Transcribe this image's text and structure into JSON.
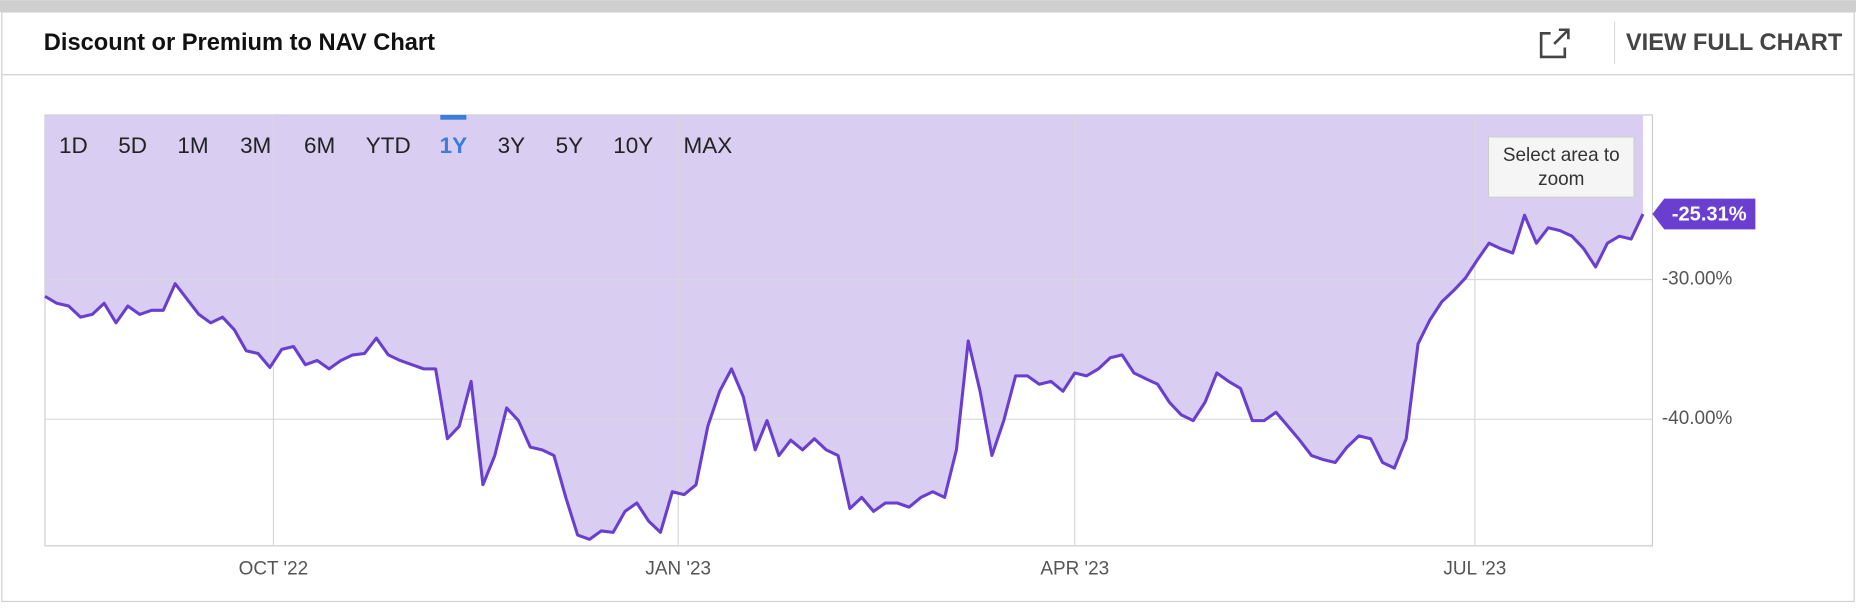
{
  "header": {
    "title": "Discount or Premium to NAV Chart",
    "action": "VIEW FULL CHART"
  },
  "chart_data": {
    "type": "line",
    "ranges": [
      "1D",
      "5D",
      "1M",
      "3M",
      "6M",
      "YTD",
      "1Y",
      "3Y",
      "5Y",
      "10Y",
      "MAX"
    ],
    "selected_range": "1Y",
    "zoom_hint": "Select area to zoom",
    "color": "#6a3fcf",
    "fill": "#d7cbf0",
    "values": [
      -31.2,
      -31.7,
      -31.9,
      -32.7,
      -32.5,
      -31.7,
      -33.1,
      -31.9,
      -32.5,
      -32.2,
      -32.2,
      -30.3,
      -31.4,
      -32.5,
      -33.1,
      -32.7,
      -33.6,
      -35.1,
      -35.3,
      -36.3,
      -35.0,
      -34.8,
      -36.1,
      -35.8,
      -36.4,
      -35.8,
      -35.4,
      -35.3,
      -34.2,
      -35.4,
      -35.8,
      -36.1,
      -36.4,
      -36.4,
      -41.4,
      -40.5,
      -37.3,
      -44.7,
      -42.6,
      -39.2,
      -40.1,
      -42.0,
      -42.2,
      -42.6,
      -45.6,
      -48.3,
      -48.6,
      -48.0,
      -48.1,
      -46.6,
      -46.0,
      -47.3,
      -48.1,
      -45.2,
      -45.4,
      -44.7,
      -40.5,
      -38.0,
      -36.4,
      -38.4,
      -42.2,
      -40.1,
      -42.6,
      -41.5,
      -42.2,
      -41.4,
      -42.2,
      -42.6,
      -46.4,
      -45.6,
      -46.6,
      -46.0,
      -46.0,
      -46.3,
      -45.6,
      -45.2,
      -45.6,
      -42.2,
      -34.4,
      -38.0,
      -42.6,
      -40.1,
      -36.9,
      -36.9,
      -37.5,
      -37.3,
      -38.0,
      -36.7,
      -36.9,
      -36.4,
      -35.6,
      -35.4,
      -36.7,
      -37.1,
      -37.5,
      -38.8,
      -39.7,
      -40.1,
      -38.8,
      -36.7,
      -37.3,
      -37.8,
      -40.1,
      -40.1,
      -39.5,
      -40.5,
      -41.5,
      -42.6,
      -42.9,
      -43.1,
      -42.0,
      -41.2,
      -41.4,
      -43.1,
      -43.5,
      -41.4,
      -34.6,
      -32.9,
      -31.6,
      -30.8,
      -29.9,
      -28.6,
      -27.4,
      -27.8,
      -28.1,
      -25.4,
      -27.4,
      -26.3,
      -26.5,
      -26.9,
      -27.8,
      -29.1,
      -27.4,
      -26.9,
      -27.1,
      -25.31
    ],
    "last_value": {
      "value": -25.31,
      "label": "-25.31%"
    },
    "xlim": [
      0,
      135.8
    ],
    "xticks": [
      {
        "value": 19.3,
        "label": "OCT '22"
      },
      {
        "value": 53.5,
        "label": "JAN '23"
      },
      {
        "value": 87,
        "label": "APR '23"
      },
      {
        "value": 120.8,
        "label": "JUL '23"
      }
    ],
    "ylim": [
      -49.07,
      -18.22
    ],
    "yticks": [
      {
        "value": -30,
        "label": "-30.00%"
      },
      {
        "value": -40,
        "label": "-40.00%"
      }
    ],
    "grid": true
  }
}
